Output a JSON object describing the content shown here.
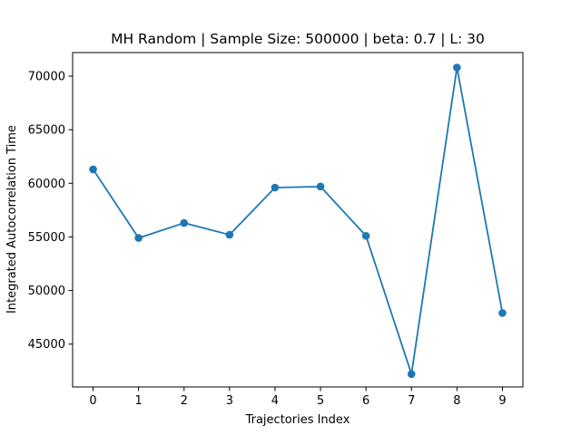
{
  "chart_data": {
    "type": "line",
    "title": "MH Random | Sample Size: 500000 | beta: 0.7 | L: 30",
    "xlabel": "Trajectories Index",
    "ylabel": "Integrated Autocorrelation Time",
    "x": [
      0,
      1,
      2,
      3,
      4,
      5,
      6,
      7,
      8,
      9
    ],
    "series": [
      {
        "values": [
          61300,
          54900,
          56300,
          55200,
          59600,
          59700,
          55100,
          42200,
          70800,
          47900
        ],
        "color": "#1f77b4",
        "marker": "circle"
      }
    ],
    "xlim": [
      -0.45,
      9.45
    ],
    "ylim": [
      41000,
      72200
    ],
    "xticks": [
      "0",
      "1",
      "2",
      "3",
      "4",
      "5",
      "6",
      "7",
      "8",
      "9"
    ],
    "yticks": [
      "45000",
      "50000",
      "55000",
      "60000",
      "65000",
      "70000"
    ],
    "ytick_values": [
      45000,
      50000,
      55000,
      60000,
      65000,
      70000
    ],
    "grid": false
  }
}
